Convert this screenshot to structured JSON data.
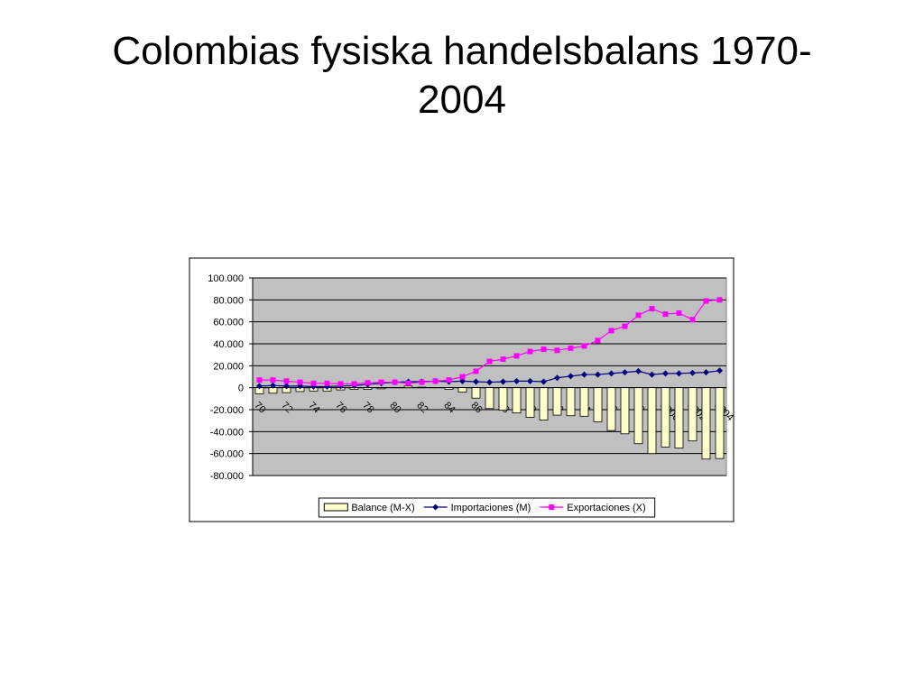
{
  "chart_data": {
    "type": "bar",
    "title": "Colombias fysiska handelsbalans 1970-2004",
    "categories": [
      "70",
      null,
      "72",
      null,
      "74",
      null,
      "76",
      null,
      "78",
      null,
      "80",
      null,
      "82",
      null,
      "84",
      null,
      "86",
      null,
      "88",
      null,
      "90",
      null,
      "92",
      null,
      "94",
      null,
      "96",
      null,
      "98",
      null,
      "2000",
      null,
      "2002",
      null,
      "2004"
    ],
    "series": [
      {
        "name": "Balance (M-X)",
        "type": "bar",
        "color": "#ffffcc",
        "values": [
          -5500,
          -5000,
          -4500,
          -3500,
          -3000,
          -3000,
          -2000,
          -1500,
          -1500,
          -1000,
          0,
          1500,
          500,
          0,
          -1500,
          -4000,
          -9500,
          -19000,
          -20500,
          -23000,
          -27000,
          -29500,
          -25000,
          -25500,
          -26000,
          -31000,
          -39000,
          -42000,
          -51000,
          -60000,
          -54000,
          -55000,
          -48500,
          -65000,
          -64500
        ]
      },
      {
        "name": "Importaciones (M)",
        "type": "line",
        "marker": "diamond",
        "color": "#000080",
        "values": [
          1500,
          2000,
          1500,
          1500,
          1000,
          1000,
          1500,
          2000,
          3000,
          4000,
          5000,
          5500,
          5500,
          6000,
          5500,
          6000,
          5500,
          5000,
          5500,
          6000,
          6000,
          5500,
          9000,
          10500,
          12000,
          12000,
          13000,
          14000,
          15000,
          12000,
          13000,
          13000,
          13500,
          14000,
          15500
        ]
      },
      {
        "name": "Exportaciones (X)",
        "type": "line",
        "marker": "square",
        "color": "#ff00ff",
        "values": [
          7000,
          7000,
          6000,
          5000,
          4000,
          4000,
          3500,
          3500,
          4500,
          5000,
          5000,
          4000,
          5000,
          6000,
          7000,
          10000,
          15000,
          24000,
          26000,
          29000,
          33000,
          35000,
          34000,
          36000,
          38000,
          43000,
          52000,
          56000,
          66000,
          72000,
          67000,
          68000,
          62000,
          79000,
          80000
        ]
      }
    ],
    "ylim": [
      -80000,
      100000
    ],
    "yticks": [
      {
        "value": -80000,
        "label": "-80.000"
      },
      {
        "value": -60000,
        "label": "-60.000"
      },
      {
        "value": -40000,
        "label": "-40.000"
      },
      {
        "value": -20000,
        "label": "-20.000"
      },
      0,
      {
        "value": 20000,
        "label": "20.000"
      },
      {
        "value": 40000,
        "label": "40.000"
      },
      {
        "value": 60000,
        "label": "60.000"
      },
      {
        "value": 80000,
        "label": "80.000"
      },
      {
        "value": 100000,
        "label": "100.000"
      }
    ],
    "grid": true,
    "plot_background": "#c0c0c0",
    "legend": "bottom"
  }
}
